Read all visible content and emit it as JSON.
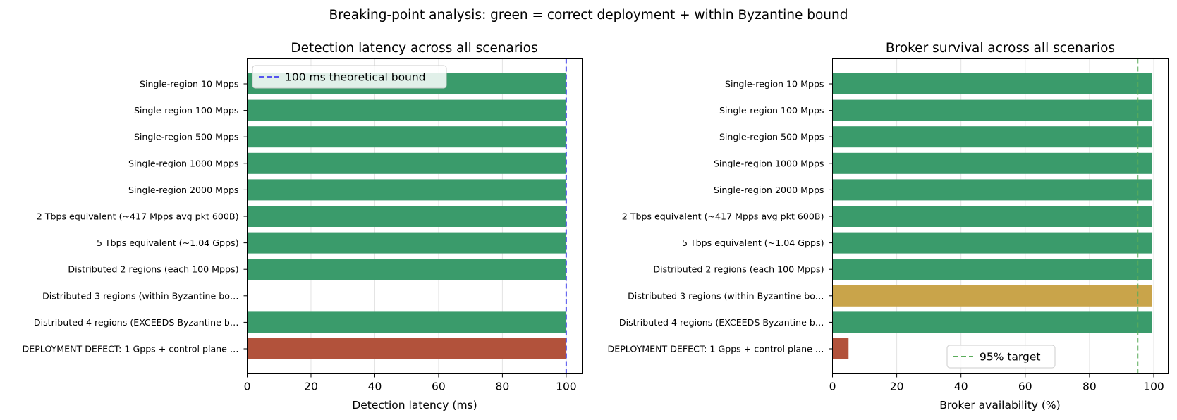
{
  "figure": {
    "title": "Breaking-point analysis: green = correct deployment + within Byzantine bound"
  },
  "colors": {
    "green": "#3a9b6b",
    "gold": "#c9a44a",
    "red": "#b2523b",
    "latency_bound_line": "#5555ee",
    "target_line": "#5aac5a"
  },
  "chart_data": [
    {
      "type": "bar",
      "orientation": "horizontal",
      "title": "Detection latency across all scenarios",
      "xlabel": "Detection latency (ms)",
      "xlim": [
        0,
        105
      ],
      "xticks": [
        0,
        20,
        40,
        60,
        80,
        100
      ],
      "grid": true,
      "categories": [
        "Single-region 10 Mpps",
        "Single-region 100 Mpps",
        "Single-region 500 Mpps",
        "Single-region 1000 Mpps",
        "Single-region 2000 Mpps",
        "2 Tbps equivalent (~417 Mpps avg pkt 600B)",
        "5 Tbps equivalent (~1.04 Gpps)",
        "Distributed 2 regions (each 100 Mpps)",
        "Distributed 3 regions (within Byzantine bo…",
        "Distributed 4 regions (EXCEEDS Byzantine b…",
        "DEPLOYMENT DEFECT: 1 Gpps + control plane …"
      ],
      "values": [
        100,
        100,
        100,
        100,
        100,
        100,
        100,
        100,
        0,
        100,
        100
      ],
      "bar_colors": [
        "green",
        "green",
        "green",
        "green",
        "green",
        "green",
        "green",
        "green",
        "gold",
        "green",
        "red"
      ],
      "reference_line": {
        "x": 100,
        "label": "100 ms theoretical bound",
        "color": "latency_bound_line"
      },
      "legend_position": "top-left"
    },
    {
      "type": "bar",
      "orientation": "horizontal",
      "title": "Broker survival across all scenarios",
      "xlabel": "Broker availability (%)",
      "xlim": [
        0,
        104.5
      ],
      "xticks": [
        0,
        20,
        40,
        60,
        80,
        100
      ],
      "grid": true,
      "categories": [
        "Single-region 10 Mpps",
        "Single-region 100 Mpps",
        "Single-region 500 Mpps",
        "Single-region 1000 Mpps",
        "Single-region 2000 Mpps",
        "2 Tbps equivalent (~417 Mpps avg pkt 600B)",
        "5 Tbps equivalent (~1.04 Gpps)",
        "Distributed 2 regions (each 100 Mpps)",
        "Distributed 3 regions (within Byzantine bo…",
        "Distributed 4 regions (EXCEEDS Byzantine b…",
        "DEPLOYMENT DEFECT: 1 Gpps + control plane …"
      ],
      "values": [
        99.5,
        99.5,
        99.5,
        99.5,
        99.5,
        99.5,
        99.5,
        99.5,
        99.5,
        99.5,
        5
      ],
      "bar_colors": [
        "green",
        "green",
        "green",
        "green",
        "green",
        "green",
        "green",
        "green",
        "gold",
        "green",
        "red"
      ],
      "reference_line": {
        "x": 95,
        "label": "95% target",
        "color": "target_line"
      },
      "legend_position": "lower-center"
    }
  ]
}
